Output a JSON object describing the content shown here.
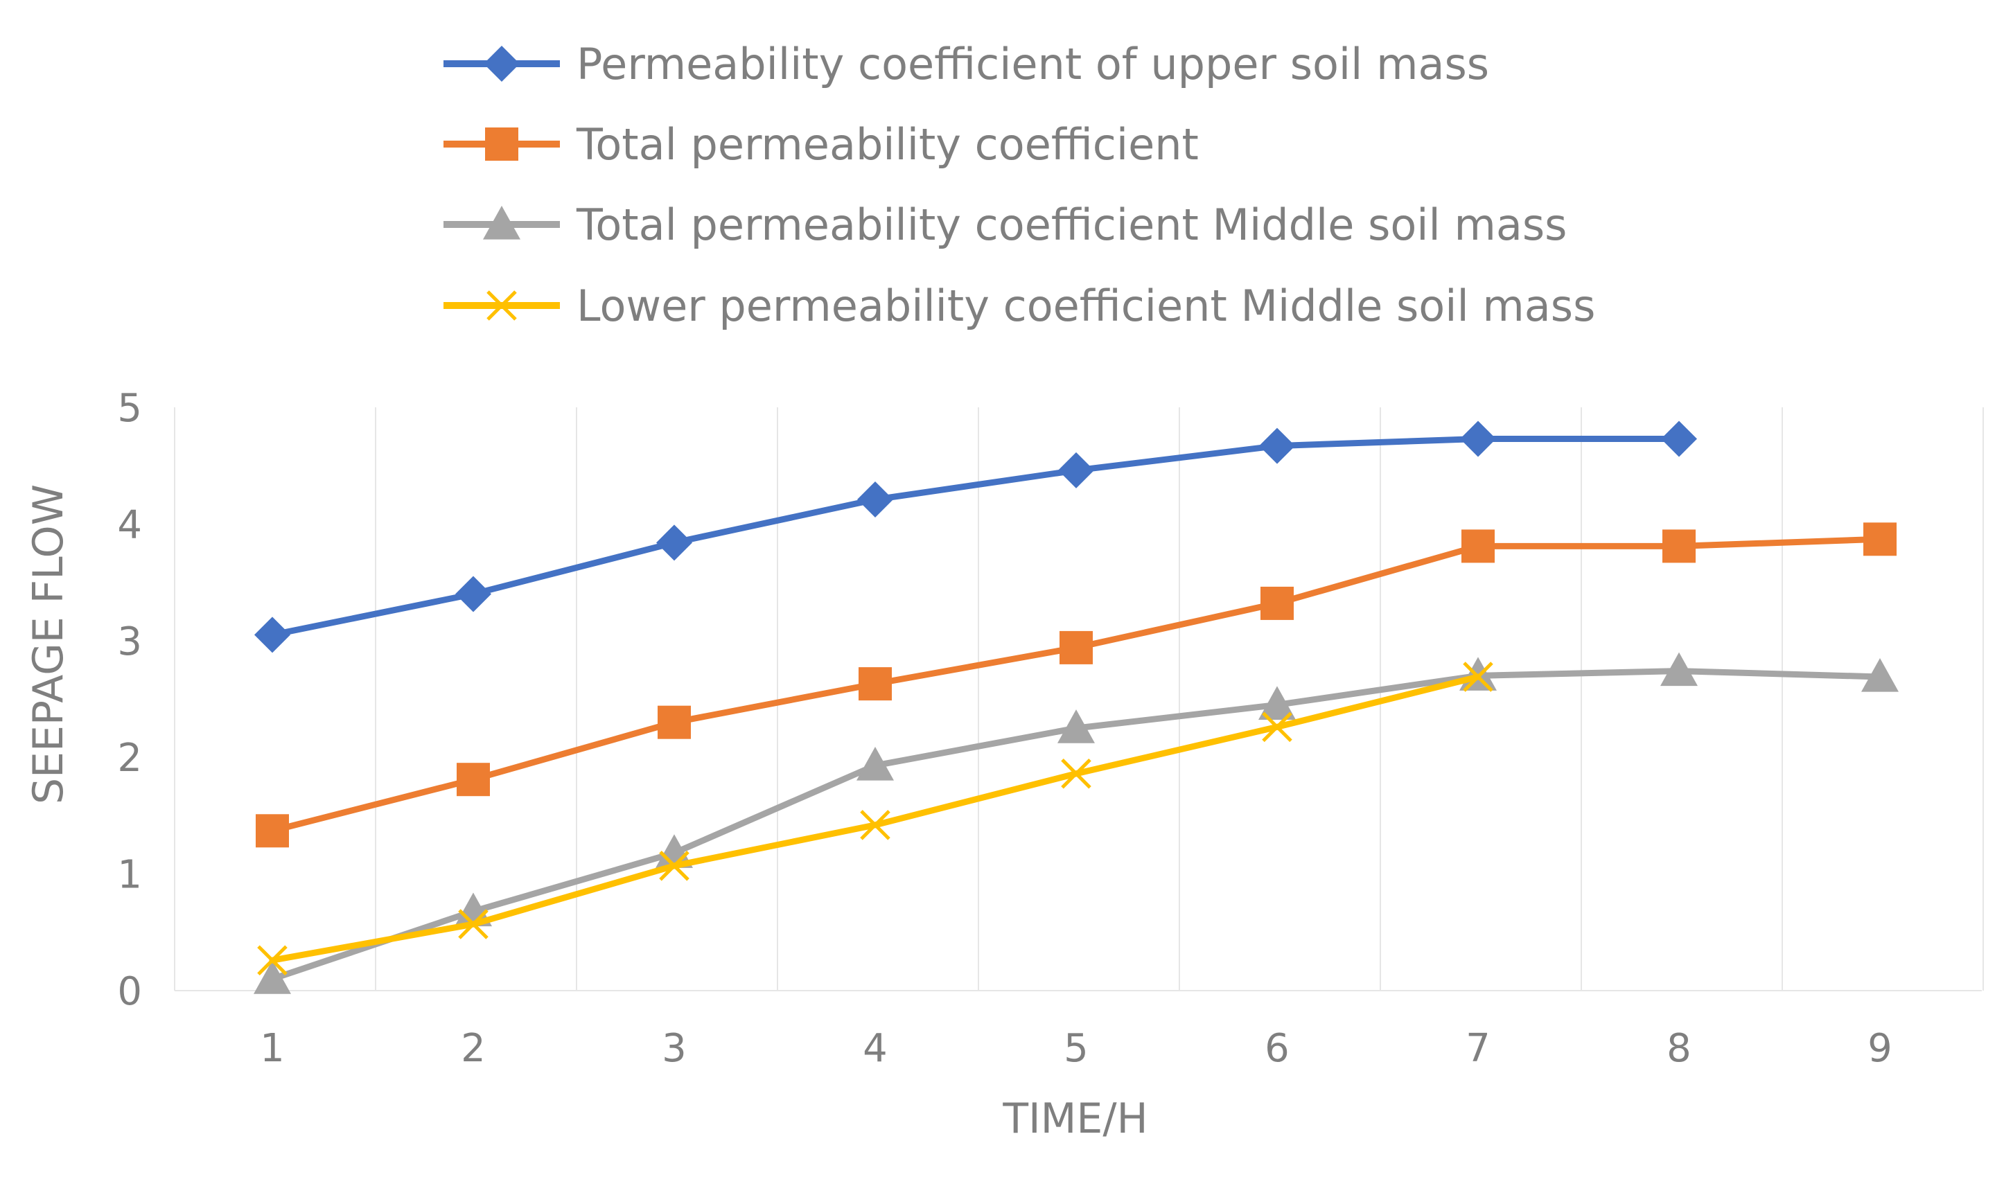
{
  "chart_data": {
    "type": "line",
    "title": "",
    "xlabel": "TIME/H",
    "ylabel": "SEEPAGE FLOW",
    "x": [
      1,
      2,
      3,
      4,
      5,
      6,
      7,
      8,
      9
    ],
    "ylim": [
      0,
      5
    ],
    "yticks": [
      0,
      1,
      2,
      3,
      4,
      5
    ],
    "grid": "vertical",
    "legend_position": "top",
    "series": [
      {
        "name": "Permeability coefficient of upper soil mass",
        "color": "#4472c4",
        "marker": "diamond",
        "x": [
          1,
          2,
          3,
          4,
          5,
          6,
          7,
          8
        ],
        "values": [
          3.05,
          3.4,
          3.84,
          4.21,
          4.46,
          4.67,
          4.73,
          4.73
        ]
      },
      {
        "name": "Total permeability coefficient",
        "color": "#ed7d31",
        "marker": "square",
        "x": [
          1,
          2,
          3,
          4,
          5,
          6,
          7,
          8,
          9
        ],
        "values": [
          1.37,
          1.81,
          2.3,
          2.63,
          2.94,
          3.32,
          3.81,
          3.81,
          3.87
        ]
      },
      {
        "name": "Total permeability coefficient Middle soil mass",
        "color": "#a5a5a5",
        "marker": "triangle",
        "x": [
          1,
          2,
          3,
          4,
          5,
          6,
          7,
          8,
          9
        ],
        "values": [
          0.1,
          0.68,
          1.18,
          1.93,
          2.25,
          2.45,
          2.7,
          2.74,
          2.69
        ]
      },
      {
        "name": "Lower permeability coefficient Middle soil mass",
        "color": "#ffc000",
        "marker": "x",
        "x": [
          1,
          2,
          3,
          4,
          5,
          6,
          7
        ],
        "values": [
          0.26,
          0.57,
          1.07,
          1.42,
          1.86,
          2.26,
          2.69
        ]
      }
    ]
  }
}
